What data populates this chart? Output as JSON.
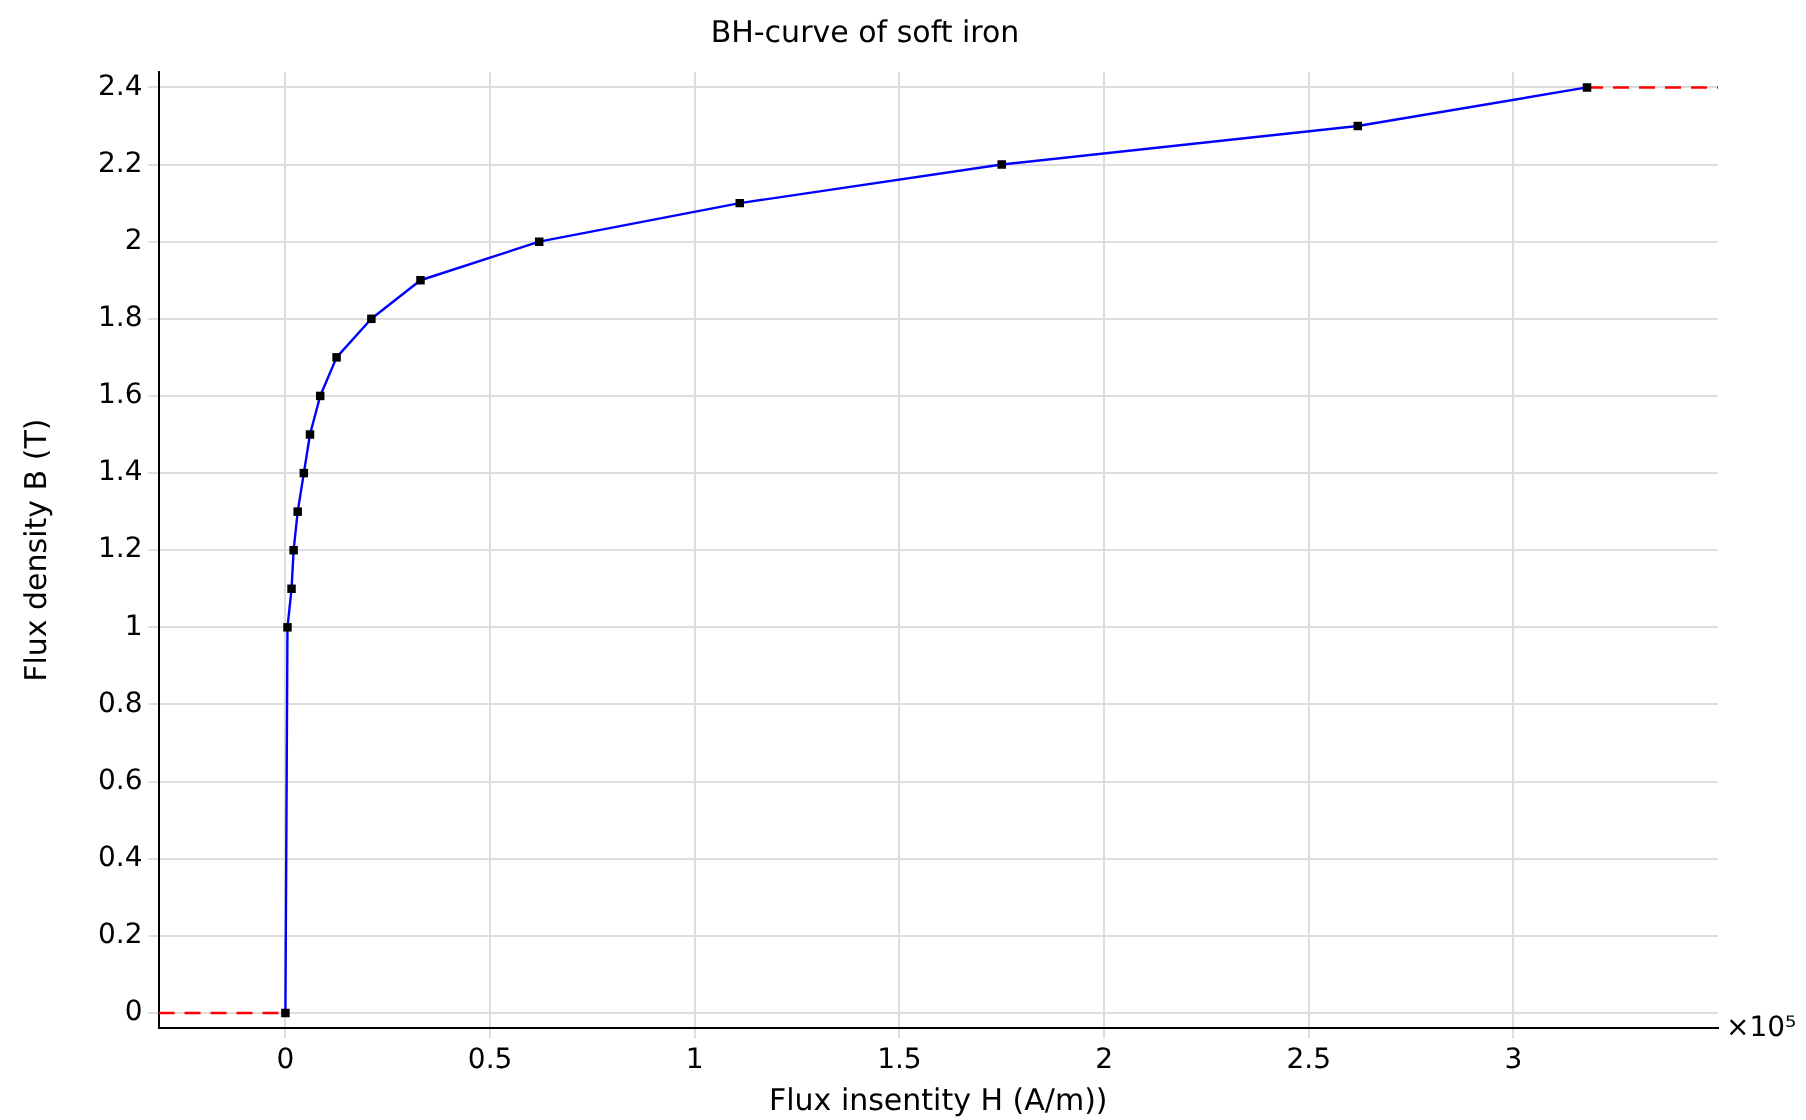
{
  "chart_data": {
    "type": "line",
    "title": "BH-curve of soft iron",
    "xlabel": "Flux insentity H (A/m))",
    "ylabel": "Flux density B (T)",
    "series": [
      {
        "color": "#0000ff",
        "marker": "square",
        "line_style": "solid",
        "x": [
          0,
          0.005,
          0.015,
          0.02,
          0.03,
          0.045,
          0.06,
          0.085,
          0.125,
          0.21,
          0.33,
          0.62,
          1.11,
          1.75,
          2.62,
          3.18
        ],
        "values": [
          0,
          1.0,
          1.1,
          1.2,
          1.3,
          1.4,
          1.5,
          1.6,
          1.7,
          1.8,
          1.9,
          2.0,
          2.1,
          2.2,
          2.3,
          2.4
        ]
      },
      {
        "color": "#ff0000",
        "marker": "none",
        "line_style": "dashed",
        "x": [
          -0.31,
          0,
          null,
          3.18,
          3.5
        ],
        "values": [
          0,
          0,
          null,
          2.4,
          2.4
        ]
      }
    ],
    "xlim": [
      -0.31,
      3.5
    ],
    "ylim": [
      -0.04,
      2.44
    ],
    "annotations": [
      "×10⁵"
    ],
    "xticks": [
      0,
      0.5,
      1,
      1.5,
      2,
      2.5,
      3
    ],
    "yticks": [
      0,
      0.2,
      0.4,
      0.6,
      0.8,
      1,
      1.2,
      1.4,
      1.6,
      1.8,
      2,
      2.2,
      2.4
    ],
    "grid": true,
    "legend": false
  }
}
